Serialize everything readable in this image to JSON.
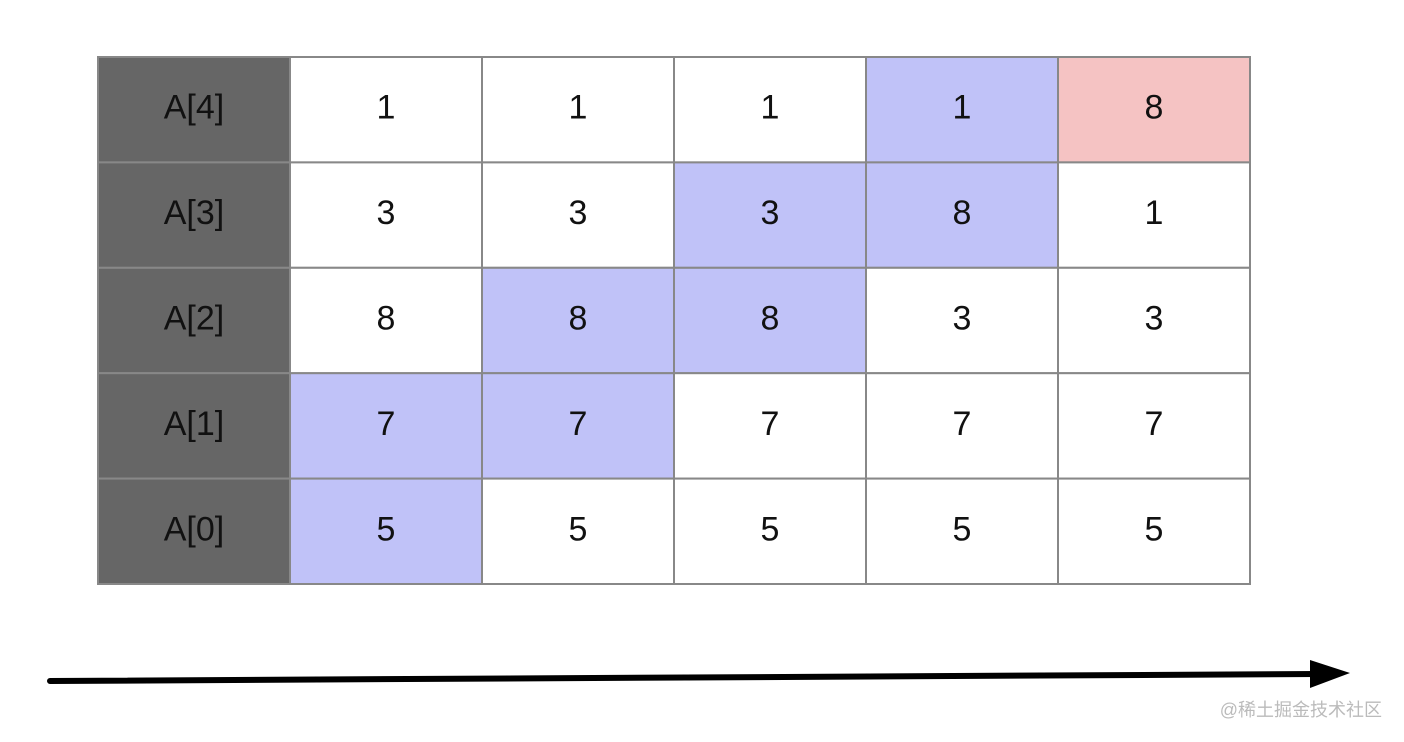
{
  "rows": [
    {
      "label": "A[4]",
      "cells": [
        1,
        1,
        1,
        1,
        8
      ],
      "fills": [
        "#ffffff",
        "#ffffff",
        "#ffffff",
        "#c0c2f8",
        "#f5c3c3"
      ]
    },
    {
      "label": "A[3]",
      "cells": [
        3,
        3,
        3,
        8,
        1
      ],
      "fills": [
        "#ffffff",
        "#ffffff",
        "#c0c2f8",
        "#c0c2f8",
        "#ffffff"
      ]
    },
    {
      "label": "A[2]",
      "cells": [
        8,
        8,
        8,
        3,
        3
      ],
      "fills": [
        "#ffffff",
        "#c0c2f8",
        "#c0c2f8",
        "#ffffff",
        "#ffffff"
      ]
    },
    {
      "label": "A[1]",
      "cells": [
        7,
        7,
        7,
        7,
        7
      ],
      "fills": [
        "#c0c2f8",
        "#c0c2f8",
        "#ffffff",
        "#ffffff",
        "#ffffff"
      ]
    },
    {
      "label": "A[0]",
      "cells": [
        5,
        5,
        5,
        5,
        5
      ],
      "fills": [
        "#c0c2f8",
        "#ffffff",
        "#ffffff",
        "#ffffff",
        "#ffffff"
      ]
    }
  ],
  "watermark": "@稀土掘金技术社区"
}
